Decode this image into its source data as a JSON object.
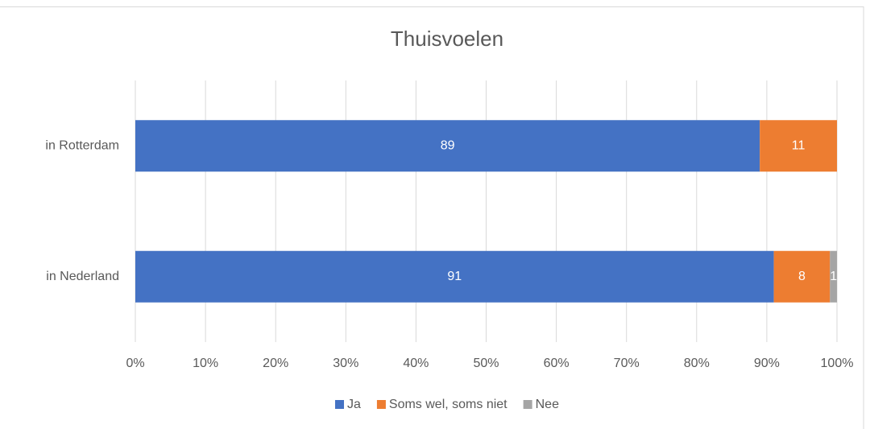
{
  "chart_data": {
    "type": "stacked_barh",
    "title": "Thuisvoelen",
    "categories": [
      "in Rotterdam",
      "in Nederland"
    ],
    "series": [
      {
        "name": "Ja",
        "color": "#4472c4",
        "values": [
          89,
          91
        ]
      },
      {
        "name": "Soms wel, soms niet",
        "color": "#ed7d31",
        "values": [
          11,
          8
        ]
      },
      {
        "name": "Nee",
        "color": "#a5a5a5",
        "values": [
          0,
          1
        ]
      }
    ],
    "xlim": [
      0,
      100
    ],
    "xticks": [
      {
        "value": 0,
        "label": "0%"
      },
      {
        "value": 10,
        "label": "10%"
      },
      {
        "value": 20,
        "label": "20%"
      },
      {
        "value": 30,
        "label": "30%"
      },
      {
        "value": 40,
        "label": "40%"
      },
      {
        "value": 50,
        "label": "50%"
      },
      {
        "value": 60,
        "label": "60%"
      },
      {
        "value": 70,
        "label": "70%"
      },
      {
        "value": 80,
        "label": "80%"
      },
      {
        "value": 90,
        "label": "90%"
      },
      {
        "value": 100,
        "label": "100%"
      }
    ],
    "grid": true,
    "legend": "bottom"
  }
}
